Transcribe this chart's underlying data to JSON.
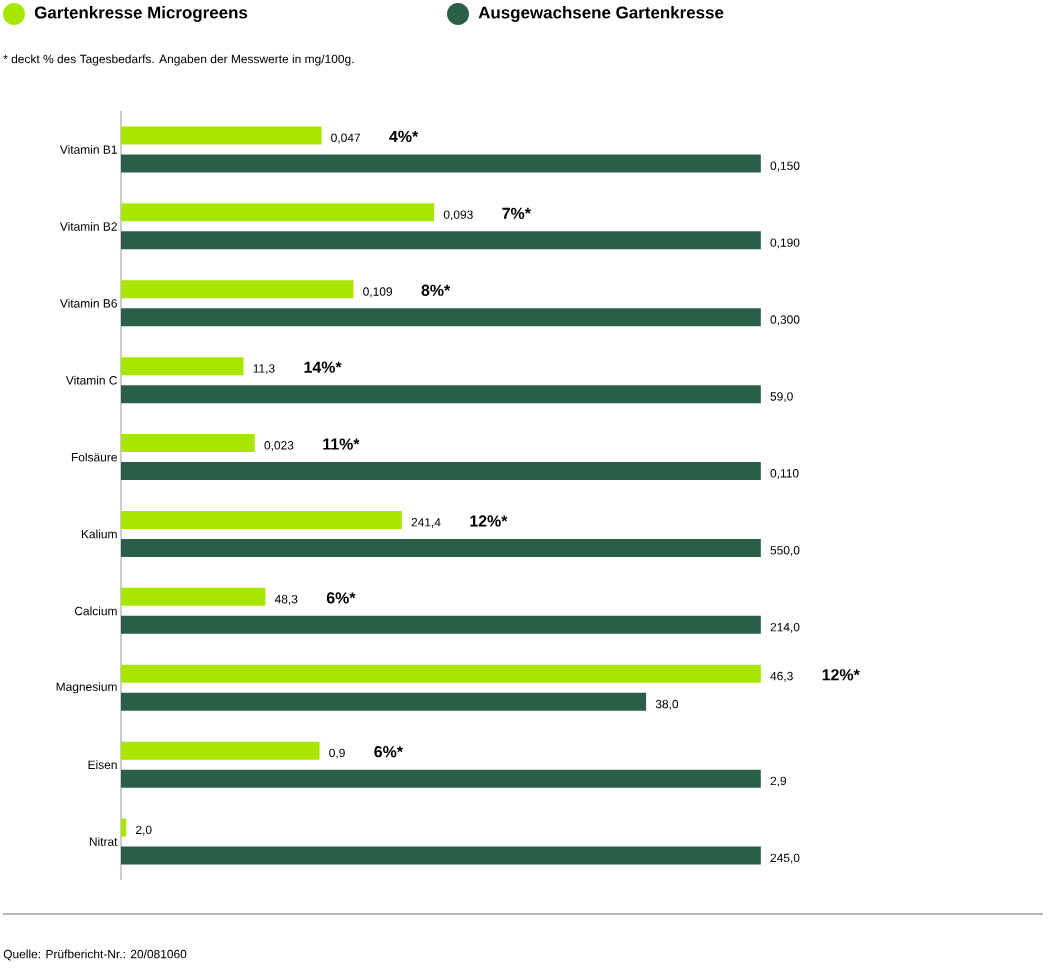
{
  "chart_data": [
    {
      "type": "bar",
      "orientation": "horizontal",
      "legend": "top",
      "tick_labels": "y",
      "subtitle": "* deckt % des Tagesbedarfs. Angaben der Messwerte in mg/100g.",
      "categories": [
        "Vitamin B1"
      ],
      "series": [
        {
          "name": "Gartenkresse Microgreens",
          "color": "#a8e600",
          "values": [
            0.047
          ],
          "value_labels": [
            "0,047"
          ]
        },
        {
          "name": "Ausgewachsene Gartenkresse",
          "color": "#2a5e48",
          "values": [
            0.15
          ],
          "value_labels": [
            "0,150"
          ]
        }
      ],
      "annotations": [
        "4%*"
      ]
    },
    {
      "type": "bar",
      "orientation": "horizontal",
      "tick_labels": "y",
      "categories": [
        "Vitamin B2"
      ],
      "series": [
        {
          "color": "#a8e600",
          "values": [
            0.093
          ],
          "value_labels": [
            "0,093"
          ]
        },
        {
          "color": "#2a5e48",
          "values": [
            0.19
          ],
          "value_labels": [
            "0,190"
          ]
        }
      ],
      "annotations": [
        "7%*"
      ]
    },
    {
      "type": "bar",
      "orientation": "horizontal",
      "tick_labels": "y",
      "categories": [
        "Vitamin B6"
      ],
      "series": [
        {
          "color": "#a8e600",
          "values": [
            0.109
          ],
          "value_labels": [
            "0,109"
          ]
        },
        {
          "color": "#2a5e48",
          "values": [
            0.3
          ],
          "value_labels": [
            "0,300"
          ]
        }
      ],
      "annotations": [
        "8%*"
      ]
    },
    {
      "type": "bar",
      "orientation": "horizontal",
      "tick_labels": "y",
      "categories": [
        "Vitamin C"
      ],
      "series": [
        {
          "color": "#a8e600",
          "values": [
            11.3
          ],
          "value_labels": [
            "11,3"
          ]
        },
        {
          "color": "#2a5e48",
          "values": [
            59.0
          ],
          "value_labels": [
            "59,0"
          ]
        }
      ],
      "annotations": [
        "14%*"
      ]
    },
    {
      "type": "bar",
      "orientation": "horizontal",
      "tick_labels": "y",
      "categories": [
        "Folsäure"
      ],
      "series": [
        {
          "color": "#a8e600",
          "values": [
            0.023
          ],
          "value_labels": [
            "0,023"
          ]
        },
        {
          "color": "#2a5e48",
          "values": [
            0.11
          ],
          "value_labels": [
            "0,110"
          ]
        }
      ],
      "annotations": [
        "11%*"
      ]
    },
    {
      "type": "bar",
      "orientation": "horizontal",
      "tick_labels": "y",
      "categories": [
        "Kalium"
      ],
      "series": [
        {
          "color": "#a8e600",
          "values": [
            241.4
          ],
          "value_labels": [
            "241,4"
          ]
        },
        {
          "color": "#2a5e48",
          "values": [
            550.0
          ],
          "value_labels": [
            "550,0"
          ]
        }
      ],
      "annotations": [
        "12%*"
      ]
    },
    {
      "type": "bar",
      "orientation": "horizontal",
      "tick_labels": "y",
      "categories": [
        "Calcium"
      ],
      "series": [
        {
          "color": "#a8e600",
          "values": [
            48.3
          ],
          "value_labels": [
            "48,3"
          ]
        },
        {
          "color": "#2a5e48",
          "values": [
            214.0
          ],
          "value_labels": [
            "214,0"
          ]
        }
      ],
      "annotations": [
        "6%*"
      ]
    },
    {
      "type": "bar",
      "orientation": "horizontal",
      "tick_labels": "y",
      "categories": [
        "Magnesium"
      ],
      "series": [
        {
          "color": "#a8e600",
          "values": [
            46.3
          ],
          "value_labels": [
            "46,3"
          ]
        },
        {
          "color": "#2a5e48",
          "values": [
            38.0
          ],
          "value_labels": [
            "38,0"
          ]
        }
      ],
      "annotations": [
        "12%*"
      ]
    },
    {
      "type": "bar",
      "orientation": "horizontal",
      "tick_labels": "y",
      "categories": [
        "Eisen"
      ],
      "series": [
        {
          "color": "#a8e600",
          "values": [
            0.9
          ],
          "value_labels": [
            "0,9"
          ]
        },
        {
          "color": "#2a5e48",
          "values": [
            2.9
          ],
          "value_labels": [
            "2,9"
          ]
        }
      ],
      "annotations": [
        "6%*"
      ]
    },
    {
      "type": "bar",
      "orientation": "horizontal",
      "tick_labels": "y",
      "categories": [
        "Nitrat"
      ],
      "series": [
        {
          "color": "#a8e600",
          "values": [
            2.0
          ],
          "value_labels": [
            "2,0"
          ]
        },
        {
          "color": "#2a5e48",
          "values": [
            245.0
          ],
          "value_labels": [
            "245,0"
          ]
        }
      ],
      "annotations": [
        "Quelle: Prüfbericht-Nr.: 20/081060"
      ]
    }
  ]
}
